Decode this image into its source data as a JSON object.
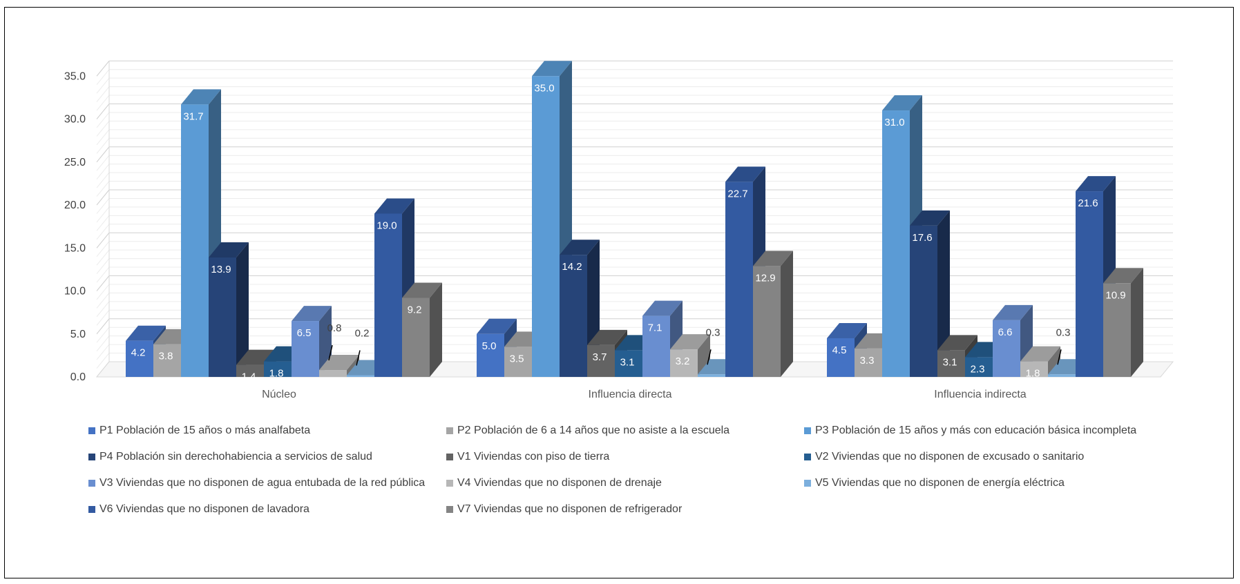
{
  "chart_data": {
    "type": "bar",
    "categories": [
      "Núcleo",
      "Influencia directa",
      "Influencia indirecta"
    ],
    "ylim": [
      0,
      35
    ],
    "yticks": [
      "0.0",
      "5.0",
      "10.0",
      "15.0",
      "20.0",
      "25.0",
      "30.0",
      "35.0"
    ],
    "grid": true,
    "legend_position": "bottom",
    "series": [
      {
        "name": "P1 Población de 15 años o más analfabeta",
        "color": "#4472C4",
        "values": [
          4.2,
          5.0,
          4.5
        ],
        "labels": [
          "4.2",
          "5.0",
          "4.5"
        ]
      },
      {
        "name": "P2 Población de 6 a 14 años que no asiste a la escuela",
        "color": "#A5A5A5",
        "values": [
          3.8,
          3.5,
          3.3
        ],
        "labels": [
          "3.8",
          "3.5",
          "3.3"
        ]
      },
      {
        "name": "P3 Población de 15 años y más con educación básica incompleta",
        "color": "#5B9BD5",
        "values": [
          31.7,
          35.0,
          31.0
        ],
        "labels": [
          "31.7",
          "35.0",
          "31.0"
        ]
      },
      {
        "name": "P4 Población sin derechohabiencia a servicios de salud",
        "color": "#264478",
        "values": [
          13.9,
          14.2,
          17.6
        ],
        "labels": [
          "13.9",
          "14.2",
          "17.6"
        ]
      },
      {
        "name": "V1 Viviendas con piso de tierra",
        "color": "#636363",
        "values": [
          1.4,
          3.7,
          3.1
        ],
        "labels": [
          "1.4",
          "3.7",
          "3.1"
        ]
      },
      {
        "name": "V2 Viviendas que no disponen de excusado o sanitario",
        "color": "#255E91",
        "values": [
          1.8,
          3.1,
          2.3
        ],
        "labels": [
          "1.8",
          "3.1",
          "2.3"
        ]
      },
      {
        "name": "V3 Viviendas que no disponen de agua entubada de la red pública",
        "color": "#698ED0",
        "values": [
          6.5,
          7.1,
          6.6
        ],
        "labels": [
          "6.5",
          "7.1",
          "6.6"
        ]
      },
      {
        "name": "V4 Viviendas que no disponen de drenaje",
        "color": "#B7B7B7",
        "values": [
          0.8,
          3.2,
          1.8
        ],
        "labels": [
          "0.8",
          "3.2",
          "1.8"
        ]
      },
      {
        "name": "V5 Viviendas que no disponen de energía eléctrica",
        "color": "#7CAFDD",
        "values": [
          0.2,
          0.3,
          0.3
        ],
        "labels": [
          "0.2",
          "0.3",
          "0.3"
        ]
      },
      {
        "name": "V6 Viviendas que no disponen de lavadora",
        "color": "#335AA1",
        "values": [
          19.0,
          22.7,
          21.6
        ],
        "labels": [
          "19.0",
          "22.7",
          "21.6"
        ]
      },
      {
        "name": "V7 Viviendas que no disponen de refrigerador",
        "color": "#848484",
        "values": [
          9.2,
          12.9,
          10.9
        ],
        "labels": [
          "9.2",
          "12.9",
          "10.9"
        ]
      }
    ]
  }
}
